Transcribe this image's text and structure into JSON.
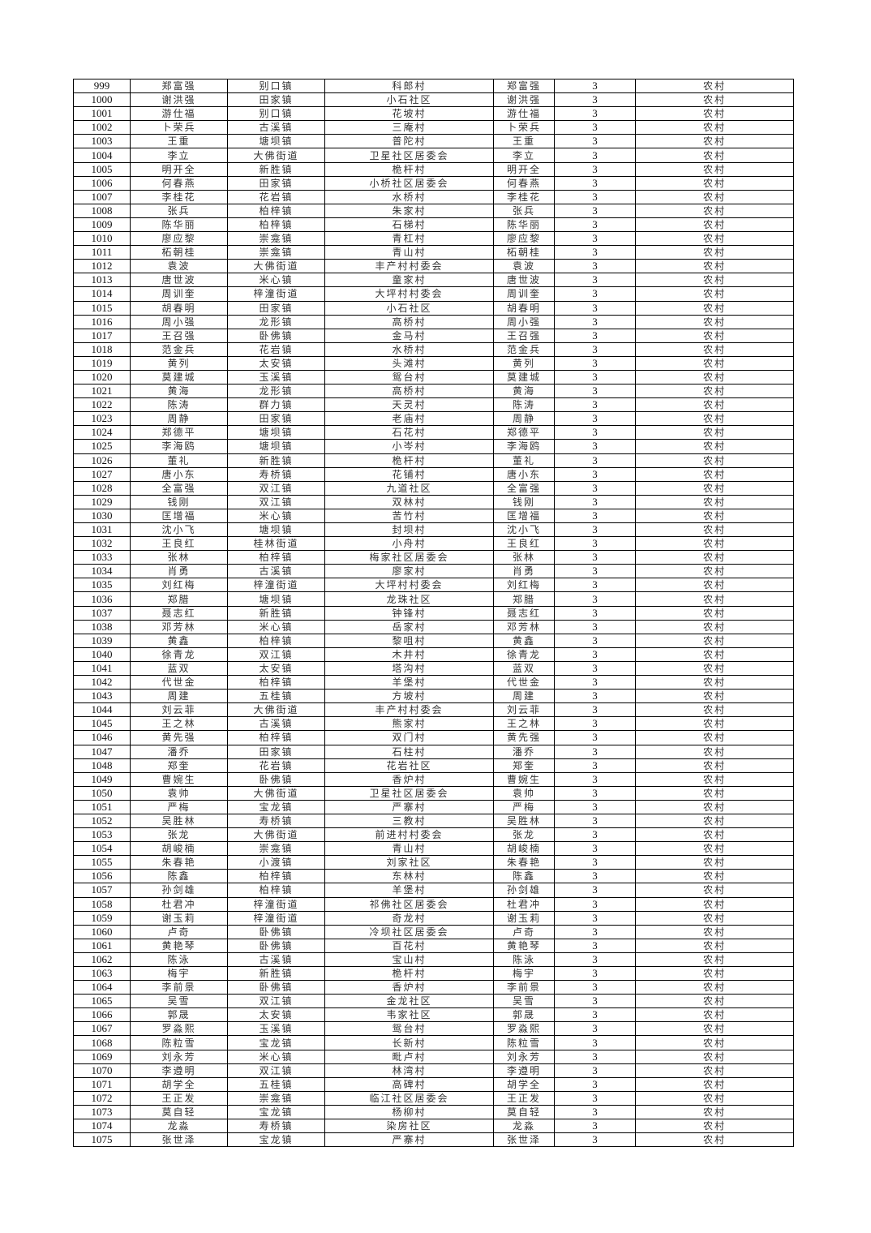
{
  "table": {
    "rows": [
      [
        "999",
        "郑富强",
        "别口镇",
        "科郎村",
        "郑富强",
        "3",
        "农村"
      ],
      [
        "1000",
        "谢洪强",
        "田家镇",
        "小石社区",
        "谢洪强",
        "3",
        "农村"
      ],
      [
        "1001",
        "游仕福",
        "别口镇",
        "花坡村",
        "游仕福",
        "3",
        "农村"
      ],
      [
        "1002",
        "卜荣兵",
        "古溪镇",
        "三庵村",
        "卜荣兵",
        "3",
        "农村"
      ],
      [
        "1003",
        "王重",
        "塘坝镇",
        "普陀村",
        "王重",
        "3",
        "农村"
      ],
      [
        "1004",
        "李立",
        "大佛街道",
        "卫星社区居委会",
        "李立",
        "3",
        "农村"
      ],
      [
        "1005",
        "明开全",
        "新胜镇",
        "桅杆村",
        "明开全",
        "3",
        "农村"
      ],
      [
        "1006",
        "何春燕",
        "田家镇",
        "小桥社区居委会",
        "何春燕",
        "3",
        "农村"
      ],
      [
        "1007",
        "李桂花",
        "花岩镇",
        "水桥村",
        "李桂花",
        "3",
        "农村"
      ],
      [
        "1008",
        "张兵",
        "柏梓镇",
        "朱家村",
        "张兵",
        "3",
        "农村"
      ],
      [
        "1009",
        "陈华丽",
        "柏梓镇",
        "石梯村",
        "陈华丽",
        "3",
        "农村"
      ],
      [
        "1010",
        "廖应黎",
        "崇龛镇",
        "青杠村",
        "廖应黎",
        "3",
        "农村"
      ],
      [
        "1011",
        "柘朝桂",
        "崇龛镇",
        "青山村",
        "柘朝桂",
        "3",
        "农村"
      ],
      [
        "1012",
        "袁波",
        "大佛街道",
        "丰产村村委会",
        "袁波",
        "3",
        "农村"
      ],
      [
        "1013",
        "唐世波",
        "米心镇",
        "童家村",
        "唐世波",
        "3",
        "农村"
      ],
      [
        "1014",
        "周训奎",
        "梓潼街道",
        "大坪村村委会",
        "周训奎",
        "3",
        "农村"
      ],
      [
        "1015",
        "胡春明",
        "田家镇",
        "小石社区",
        "胡春明",
        "3",
        "农村"
      ],
      [
        "1016",
        "周小强",
        "龙形镇",
        "高桥村",
        "周小强",
        "3",
        "农村"
      ],
      [
        "1017",
        "王召强",
        "卧佛镇",
        "金马村",
        "王召强",
        "3",
        "农村"
      ],
      [
        "1018",
        "范金兵",
        "花岩镇",
        "水桥村",
        "范金兵",
        "3",
        "农村"
      ],
      [
        "1019",
        "黄列",
        "太安镇",
        "头滩村",
        "黄列",
        "3",
        "农村"
      ],
      [
        "1020",
        "莫建城",
        "玉溪镇",
        "鸳台村",
        "莫建城",
        "3",
        "农村"
      ],
      [
        "1021",
        "黄海",
        "龙形镇",
        "高桥村",
        "黄海",
        "3",
        "农村"
      ],
      [
        "1022",
        "陈涛",
        "群力镇",
        "天灵村",
        "陈涛",
        "3",
        "农村"
      ],
      [
        "1023",
        "周静",
        "田家镇",
        "老庙村",
        "周静",
        "3",
        "农村"
      ],
      [
        "1024",
        "郑德平",
        "塘坝镇",
        "石花村",
        "郑德平",
        "3",
        "农村"
      ],
      [
        "1025",
        "李海鸥",
        "塘坝镇",
        "小岑村",
        "李海鸥",
        "3",
        "农村"
      ],
      [
        "1026",
        "董礼",
        "新胜镇",
        "桅杆村",
        "董礼",
        "3",
        "农村"
      ],
      [
        "1027",
        "唐小东",
        "寿桥镇",
        "花铺村",
        "唐小东",
        "3",
        "农村"
      ],
      [
        "1028",
        "全富强",
        "双江镇",
        "九道社区",
        "全富强",
        "3",
        "农村"
      ],
      [
        "1029",
        "钱刚",
        "双江镇",
        "双林村",
        "钱刚",
        "3",
        "农村"
      ],
      [
        "1030",
        "匡增福",
        "米心镇",
        "苦竹村",
        "匡增福",
        "3",
        "农村"
      ],
      [
        "1031",
        "沈小飞",
        "塘坝镇",
        "封坝村",
        "沈小飞",
        "3",
        "农村"
      ],
      [
        "1032",
        "王良红",
        "桂林街道",
        "小舟村",
        "王良红",
        "3",
        "农村"
      ],
      [
        "1033",
        "张林",
        "柏梓镇",
        "梅家社区居委会",
        "张林",
        "3",
        "农村"
      ],
      [
        "1034",
        "肖勇",
        "古溪镇",
        "廖家村",
        "肖勇",
        "3",
        "农村"
      ],
      [
        "1035",
        "刘红梅",
        "梓潼街道",
        "大坪村村委会",
        "刘红梅",
        "3",
        "农村"
      ],
      [
        "1036",
        "郑腊",
        "塘坝镇",
        "龙珠社区",
        "郑腊",
        "3",
        "农村"
      ],
      [
        "1037",
        "聂志红",
        "新胜镇",
        "钟锋村",
        "聂志红",
        "3",
        "农村"
      ],
      [
        "1038",
        "邓芳林",
        "米心镇",
        "岳家村",
        "邓芳林",
        "3",
        "农村"
      ],
      [
        "1039",
        "黄鑫",
        "柏梓镇",
        "黎咀村",
        "黄鑫",
        "3",
        "农村"
      ],
      [
        "1040",
        "徐青龙",
        "双江镇",
        "木井村",
        "徐青龙",
        "3",
        "农村"
      ],
      [
        "1041",
        "蓝双",
        "太安镇",
        "塔沟村",
        "蓝双",
        "3",
        "农村"
      ],
      [
        "1042",
        "代世金",
        "柏梓镇",
        "羊堡村",
        "代世金",
        "3",
        "农村"
      ],
      [
        "1043",
        "周建",
        "五桂镇",
        "方坡村",
        "周建",
        "3",
        "农村"
      ],
      [
        "1044",
        "刘云菲",
        "大佛街道",
        "丰产村村委会",
        "刘云菲",
        "3",
        "农村"
      ],
      [
        "1045",
        "王之林",
        "古溪镇",
        "熊家村",
        "王之林",
        "3",
        "农村"
      ],
      [
        "1046",
        "黄先强",
        "柏梓镇",
        "双门村",
        "黄先强",
        "3",
        "农村"
      ],
      [
        "1047",
        "潘乔",
        "田家镇",
        "石柱村",
        "潘乔",
        "3",
        "农村"
      ],
      [
        "1048",
        "郑奎",
        "花岩镇",
        "花岩社区",
        "郑奎",
        "3",
        "农村"
      ],
      [
        "1049",
        "曹婉生",
        "卧佛镇",
        "香炉村",
        "曹婉生",
        "3",
        "农村"
      ],
      [
        "1050",
        "袁帅",
        "大佛街道",
        "卫星社区居委会",
        "袁帅",
        "3",
        "农村"
      ],
      [
        "1051",
        "严梅",
        "宝龙镇",
        "严寨村",
        "严梅",
        "3",
        "农村"
      ],
      [
        "1052",
        "吴胜林",
        "寿桥镇",
        "三教村",
        "吴胜林",
        "3",
        "农村"
      ],
      [
        "1053",
        "张龙",
        "大佛街道",
        "前进村村委会",
        "张龙",
        "3",
        "农村"
      ],
      [
        "1054",
        "胡峻楠",
        "崇龛镇",
        "青山村",
        "胡峻楠",
        "3",
        "农村"
      ],
      [
        "1055",
        "朱春艳",
        "小渡镇",
        "刘家社区",
        "朱春艳",
        "3",
        "农村"
      ],
      [
        "1056",
        "陈鑫",
        "柏梓镇",
        "东林村",
        "陈鑫",
        "3",
        "农村"
      ],
      [
        "1057",
        "孙剑雄",
        "柏梓镇",
        "羊堡村",
        "孙剑雄",
        "3",
        "农村"
      ],
      [
        "1058",
        "杜君冲",
        "梓潼街道",
        "祁佛社区居委会",
        "杜君冲",
        "3",
        "农村"
      ],
      [
        "1059",
        "谢玉莉",
        "梓潼街道",
        "奇龙村",
        "谢玉莉",
        "3",
        "农村"
      ],
      [
        "1060",
        "卢奇",
        "卧佛镇",
        "冷坝社区居委会",
        "卢奇",
        "3",
        "农村"
      ],
      [
        "1061",
        "黄艳琴",
        "卧佛镇",
        "百花村",
        "黄艳琴",
        "3",
        "农村"
      ],
      [
        "1062",
        "陈泳",
        "古溪镇",
        "宝山村",
        "陈泳",
        "3",
        "农村"
      ],
      [
        "1063",
        "梅宇",
        "新胜镇",
        "桅杆村",
        "梅宇",
        "3",
        "农村"
      ],
      [
        "1064",
        "李前景",
        "卧佛镇",
        "香炉村",
        "李前景",
        "3",
        "农村"
      ],
      [
        "1065",
        "吴雪",
        "双江镇",
        "金龙社区",
        "吴雪",
        "3",
        "农村"
      ],
      [
        "1066",
        "郭晟",
        "太安镇",
        "韦家社区",
        "郭晟",
        "3",
        "农村"
      ],
      [
        "1067",
        "罗淼熙",
        "玉溪镇",
        "鸳台村",
        "罗淼熙",
        "3",
        "农村"
      ],
      [
        "1068",
        "陈粒雪",
        "宝龙镇",
        "长新村",
        "陈粒雪",
        "3",
        "农村"
      ],
      [
        "1069",
        "刘永芳",
        "米心镇",
        "毗卢村",
        "刘永芳",
        "3",
        "农村"
      ],
      [
        "1070",
        "李遵明",
        "双江镇",
        "林湾村",
        "李遵明",
        "3",
        "农村"
      ],
      [
        "1071",
        "胡学全",
        "五桂镇",
        "高碑村",
        "胡学全",
        "3",
        "农村"
      ],
      [
        "1072",
        "王正发",
        "崇龛镇",
        "临江社区居委会",
        "王正发",
        "3",
        "农村"
      ],
      [
        "1073",
        "莫自轻",
        "宝龙镇",
        "杨柳村",
        "莫自轻",
        "3",
        "农村"
      ],
      [
        "1074",
        "龙淼",
        "寿桥镇",
        "染房社区",
        "龙淼",
        "3",
        "农村"
      ],
      [
        "1075",
        "张世泽",
        "宝龙镇",
        "严寨村",
        "张世泽",
        "3",
        "农村"
      ]
    ]
  }
}
